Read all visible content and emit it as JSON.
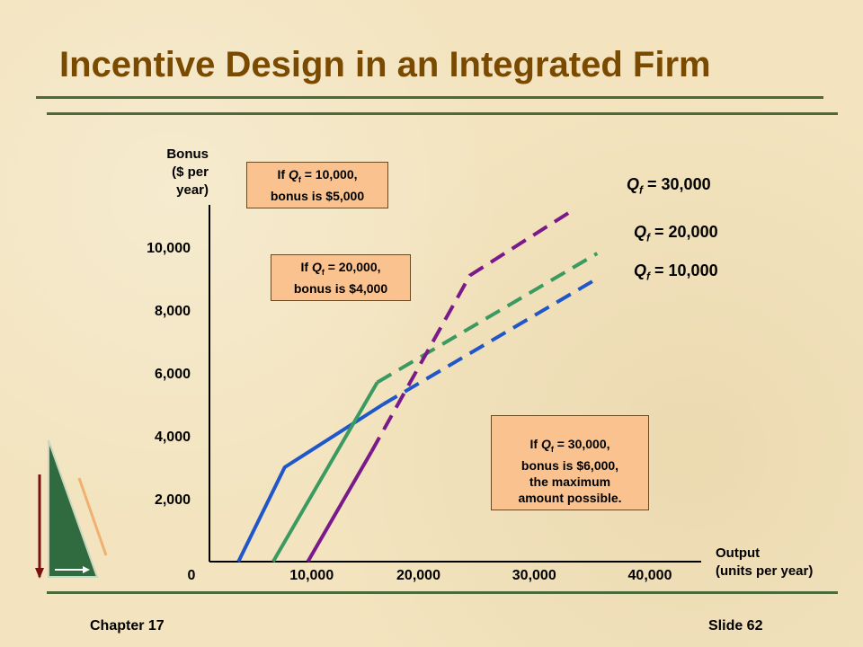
{
  "slide": {
    "title": "Incentive Design in an Integrated Firm",
    "footer_left": "Chapter 17",
    "footer_right": "Slide 62"
  },
  "callouts": [
    {
      "prefix": "If ",
      "var": "Q",
      "sub": "f",
      "line1_rest": " = 10,000,",
      "rest": "bonus is $5,000"
    },
    {
      "prefix": "If ",
      "var": "Q",
      "sub": "f",
      "line1_rest": " = 20,000,",
      "rest": "bonus is $4,000"
    },
    {
      "prefix": "If ",
      "var": "Q",
      "sub": "f",
      "line1_rest": " = 30,000,",
      "rest": "bonus is $6,000,\nthe maximum\namount possible."
    }
  ],
  "chart_data": {
    "type": "line",
    "xlabel": "Output\n(units per year)",
    "ylabel": "Bonus\n($ per\nyear)",
    "x_ticks": [
      0,
      10000,
      20000,
      30000,
      40000
    ],
    "x_tick_labels": [
      "10,000",
      "20,000",
      "30,000",
      "40,000"
    ],
    "y_ticks": [
      2000,
      4000,
      6000,
      8000,
      10000
    ],
    "y_tick_labels": [
      "2,000",
      "4,000",
      "6,000",
      "8,000",
      "10,000"
    ],
    "origin_label": "0",
    "xlim": [
      0,
      40000
    ],
    "ylim": [
      0,
      10000
    ],
    "series": [
      {
        "name": "Q f = 10,000",
        "label_var": "Q",
        "label_sub": "f",
        "label_value": " = 10,000",
        "color": "#1f56c8",
        "solid": [
          [
            2500,
            0
          ],
          [
            6500,
            3000
          ],
          [
            15000,
            5000
          ]
        ],
        "dashed": [
          [
            15000,
            5000
          ],
          [
            33500,
            9000
          ]
        ]
      },
      {
        "name": "Q f = 20,000",
        "label_var": "Q",
        "label_sub": "f",
        "label_value": " = 20,000",
        "color": "#3a9a60",
        "solid": [
          [
            5500,
            0
          ],
          [
            14500,
            5700
          ]
        ],
        "dashed": [
          [
            14500,
            5700
          ],
          [
            33500,
            9800
          ]
        ]
      },
      {
        "name": "Q f = 30,000",
        "label_var": "Q",
        "label_sub": "f",
        "label_value": " = 30,000",
        "color": "#7a1a8a",
        "solid": [
          [
            8500,
            0
          ],
          [
            14000,
            3500
          ]
        ],
        "dashed": [
          [
            14000,
            3500
          ],
          [
            22500,
            9100
          ],
          [
            31500,
            11200
          ]
        ]
      }
    ]
  }
}
